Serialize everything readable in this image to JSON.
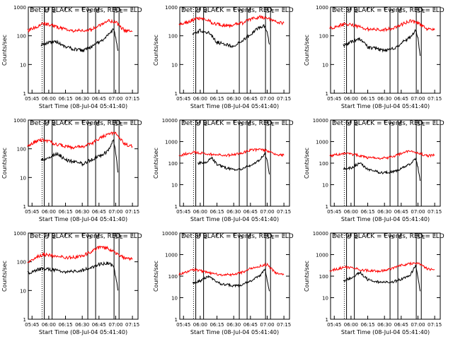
{
  "chart_data": [
    {
      "type": "line",
      "title": "Det 1f BLACK = Events, RED = LLD",
      "ylabel": "Counts/sec",
      "xlabel": "Start Time (08-Jul-04 05:41:40)",
      "x_ticks": [
        "05:45",
        "06:00",
        "06:15",
        "06:30",
        "06:45",
        "07:00",
        "07:15"
      ],
      "y_ticks": [
        "1",
        "10",
        "100",
        "1000"
      ],
      "ylim": [
        1,
        1000
      ],
      "yscale": "log",
      "markers": [
        "S",
        "E",
        "S",
        "E",
        "S",
        "E"
      ],
      "series": [
        {
          "color": "#000000",
          "x": [
            "05:53",
            "06:00",
            "06:08",
            "06:15",
            "06:23",
            "06:30",
            "06:38",
            "06:45",
            "06:53",
            "06:58",
            "07:00",
            "07:02"
          ],
          "values": [
            50,
            60,
            60,
            40,
            35,
            30,
            40,
            60,
            100,
            180,
            90,
            30
          ]
        },
        {
          "color": "#ff0000",
          "x": [
            "05:41",
            "05:48",
            "05:55",
            "06:00",
            "06:08",
            "06:15",
            "06:23",
            "06:30",
            "06:38",
            "06:45",
            "06:53",
            "07:00",
            "07:08",
            "07:15"
          ],
          "values": [
            150,
            200,
            260,
            250,
            200,
            170,
            150,
            150,
            160,
            220,
            330,
            300,
            150,
            140
          ]
        }
      ]
    },
    {
      "type": "line",
      "title": "Det 2f BLACK = Events, RED = LLD",
      "ylabel": "Counts/sec",
      "xlabel": "Start Time (08-Jul-04 05:41:40)",
      "x_ticks": [
        "05:45",
        "06:00",
        "06:15",
        "06:30",
        "06:45",
        "07:00",
        "07:15"
      ],
      "y_ticks": [
        "1",
        "10",
        "100",
        "1000"
      ],
      "ylim": [
        1,
        1000
      ],
      "yscale": "log",
      "markers": [
        "S",
        "E",
        "S",
        "E",
        "S",
        "E"
      ],
      "series": [
        {
          "color": "#000000",
          "x": [
            "05:53",
            "06:00",
            "06:08",
            "06:15",
            "06:23",
            "06:30",
            "06:38",
            "06:45",
            "06:53",
            "06:58",
            "07:00",
            "07:02"
          ],
          "values": [
            120,
            150,
            130,
            60,
            50,
            40,
            70,
            110,
            200,
            220,
            120,
            50
          ]
        },
        {
          "color": "#ff0000",
          "x": [
            "05:41",
            "05:48",
            "05:55",
            "06:00",
            "06:08",
            "06:15",
            "06:23",
            "06:30",
            "06:38",
            "06:45",
            "06:53",
            "07:00",
            "07:08",
            "07:15"
          ],
          "values": [
            250,
            300,
            380,
            400,
            320,
            250,
            220,
            240,
            280,
            380,
            450,
            400,
            300,
            280
          ]
        }
      ]
    },
    {
      "type": "line",
      "title": "Det 3f BLACK = Events, RED = LLD",
      "ylabel": "Counts/sec",
      "xlabel": "Start Time (08-Jul-04 05:41:40)",
      "x_ticks": [
        "05:45",
        "06:00",
        "06:15",
        "06:30",
        "06:45",
        "07:00",
        "07:15"
      ],
      "y_ticks": [
        "1",
        "10",
        "100",
        "1000"
      ],
      "ylim": [
        1,
        1000
      ],
      "yscale": "log",
      "markers": [
        "S",
        "E",
        "S",
        "E",
        "S",
        "E"
      ],
      "series": [
        {
          "color": "#000000",
          "x": [
            "05:53",
            "06:00",
            "06:08",
            "06:15",
            "06:23",
            "06:30",
            "06:38",
            "06:45",
            "06:53",
            "06:58",
            "07:00",
            "07:02"
          ],
          "values": [
            45,
            60,
            80,
            40,
            35,
            30,
            35,
            55,
            90,
            150,
            80,
            20
          ]
        },
        {
          "color": "#ff0000",
          "x": [
            "05:41",
            "05:48",
            "05:55",
            "06:00",
            "06:08",
            "06:15",
            "06:23",
            "06:30",
            "06:38",
            "06:45",
            "06:53",
            "07:00",
            "07:08",
            "07:15"
          ],
          "values": [
            180,
            220,
            260,
            250,
            200,
            170,
            160,
            160,
            180,
            240,
            330,
            280,
            170,
            160
          ]
        }
      ]
    },
    {
      "type": "line",
      "title": "Det 4f BLACK = Events, RED = LLD",
      "ylabel": "Counts/sec",
      "xlabel": "Start Time (08-Jul-04 05:41:40)",
      "x_ticks": [
        "05:45",
        "06:00",
        "06:15",
        "06:30",
        "06:45",
        "07:00",
        "07:15"
      ],
      "y_ticks": [
        "1",
        "10",
        "100",
        "1000"
      ],
      "ylim": [
        1,
        1000
      ],
      "yscale": "log",
      "markers": [
        "S",
        "E",
        "S",
        "E",
        "S",
        "E"
      ],
      "series": [
        {
          "color": "#000000",
          "x": [
            "05:53",
            "06:00",
            "06:08",
            "06:15",
            "06:23",
            "06:30",
            "06:38",
            "06:45",
            "06:53",
            "06:58",
            "07:00",
            "07:02"
          ],
          "values": [
            40,
            50,
            70,
            40,
            35,
            30,
            40,
            55,
            80,
            200,
            70,
            15
          ]
        },
        {
          "color": "#ff0000",
          "x": [
            "05:41",
            "05:48",
            "05:55",
            "06:00",
            "06:08",
            "06:15",
            "06:23",
            "06:30",
            "06:38",
            "06:45",
            "06:53",
            "07:00",
            "07:08",
            "07:15"
          ],
          "values": [
            130,
            180,
            200,
            180,
            140,
            120,
            110,
            120,
            150,
            220,
            320,
            350,
            150,
            120
          ]
        }
      ]
    },
    {
      "type": "line",
      "title": "Det 5f BLACK = Events, RED = LLD",
      "ylabel": "Counts/sec",
      "xlabel": "Start Time (08-Jul-04 05:41:40)",
      "x_ticks": [
        "05:45",
        "06:00",
        "06:15",
        "06:30",
        "06:45",
        "07:00",
        "07:15"
      ],
      "y_ticks": [
        "1",
        "10",
        "100",
        "1000",
        "10000"
      ],
      "ylim": [
        1,
        10000
      ],
      "yscale": "log",
      "markers": [
        "S",
        "E",
        "S",
        "E",
        "S",
        "E"
      ],
      "series": [
        {
          "color": "#000000",
          "x": [
            "05:58",
            "06:05",
            "06:10",
            "06:15",
            "06:23",
            "06:30",
            "06:38",
            "06:45",
            "06:53",
            "06:58",
            "07:00",
            "07:02"
          ],
          "values": [
            100,
            110,
            180,
            90,
            60,
            50,
            55,
            80,
            130,
            280,
            120,
            30
          ]
        },
        {
          "color": "#ff0000",
          "x": [
            "05:41",
            "05:48",
            "05:55",
            "06:00",
            "06:08",
            "06:15",
            "06:23",
            "06:30",
            "06:38",
            "06:45",
            "06:53",
            "07:00",
            "07:08",
            "07:15"
          ],
          "values": [
            220,
            280,
            320,
            300,
            260,
            240,
            230,
            240,
            300,
            400,
            430,
            380,
            240,
            230
          ]
        }
      ]
    },
    {
      "type": "line",
      "title": "Det 6f BLACK = Events, RED = LLD",
      "ylabel": "Counts/sec",
      "xlabel": "Start Time (08-Jul-04 05:41:40)",
      "x_ticks": [
        "05:45",
        "06:00",
        "06:15",
        "06:30",
        "06:45",
        "07:00",
        "07:15"
      ],
      "y_ticks": [
        "1",
        "10",
        "100",
        "1000",
        "10000"
      ],
      "ylim": [
        1,
        10000
      ],
      "yscale": "log",
      "markers": [
        "S",
        "E",
        "S",
        "E",
        "S",
        "E"
      ],
      "series": [
        {
          "color": "#000000",
          "x": [
            "05:53",
            "06:00",
            "06:08",
            "06:15",
            "06:23",
            "06:30",
            "06:38",
            "06:45",
            "06:53",
            "06:58",
            "07:00",
            "07:02"
          ],
          "values": [
            55,
            60,
            100,
            50,
            40,
            35,
            40,
            55,
            90,
            160,
            60,
            15
          ]
        },
        {
          "color": "#ff0000",
          "x": [
            "05:41",
            "05:48",
            "05:55",
            "06:00",
            "06:08",
            "06:15",
            "06:23",
            "06:30",
            "06:38",
            "06:45",
            "06:53",
            "07:00",
            "07:08",
            "07:15"
          ],
          "values": [
            220,
            250,
            280,
            260,
            220,
            180,
            170,
            170,
            200,
            280,
            370,
            300,
            220,
            230
          ]
        }
      ]
    },
    {
      "type": "line",
      "title": "Det 7f BLACK = Events, RED = LLD",
      "ylabel": "Counts/sec",
      "xlabel": "Start Time (08-Jul-04 05:41:40)",
      "x_ticks": [
        "05:45",
        "06:00",
        "06:15",
        "06:30",
        "06:45",
        "07:00",
        "07:15"
      ],
      "y_ticks": [
        "1",
        "10",
        "100",
        "1000"
      ],
      "ylim": [
        1,
        1000
      ],
      "yscale": "log",
      "markers": [
        "S",
        "E",
        "S",
        "E",
        "S",
        "E"
      ],
      "series": [
        {
          "color": "#000000",
          "x": [
            "05:41",
            "05:48",
            "05:55",
            "06:00",
            "06:08",
            "06:15",
            "06:23",
            "06:30",
            "06:38",
            "06:45",
            "06:53",
            "06:58",
            "07:00",
            "07:02"
          ],
          "values": [
            40,
            50,
            60,
            55,
            50,
            45,
            45,
            50,
            60,
            80,
            90,
            70,
            30,
            10
          ]
        },
        {
          "color": "#ff0000",
          "x": [
            "05:41",
            "05:48",
            "05:55",
            "06:00",
            "06:08",
            "06:15",
            "06:23",
            "06:30",
            "06:38",
            "06:45",
            "06:53",
            "07:00",
            "07:08",
            "07:15"
          ],
          "values": [
            100,
            140,
            180,
            170,
            150,
            140,
            140,
            160,
            220,
            320,
            300,
            200,
            130,
            120
          ]
        }
      ]
    },
    {
      "type": "line",
      "title": "Det 8f BLACK = Events, RED = LLD",
      "ylabel": "Counts/sec",
      "xlabel": "Start Time (08-Jul-04 05:41:40)",
      "x_ticks": [
        "05:45",
        "06:00",
        "06:15",
        "06:30",
        "06:45",
        "07:00",
        "07:15"
      ],
      "y_ticks": [
        "1",
        "10",
        "100",
        "1000",
        "10000"
      ],
      "ylim": [
        1,
        10000
      ],
      "yscale": "log",
      "markers": [
        "S",
        "E",
        "S",
        "E",
        "S",
        "E"
      ],
      "series": [
        {
          "color": "#000000",
          "x": [
            "05:53",
            "06:00",
            "06:08",
            "06:15",
            "06:23",
            "06:30",
            "06:38",
            "06:45",
            "06:53",
            "06:58",
            "07:00",
            "07:02"
          ],
          "values": [
            50,
            60,
            100,
            50,
            40,
            35,
            40,
            60,
            100,
            200,
            60,
            20
          ]
        },
        {
          "color": "#ff0000",
          "x": [
            "05:41",
            "05:48",
            "05:55",
            "06:00",
            "06:08",
            "06:15",
            "06:23",
            "06:30",
            "06:38",
            "06:45",
            "06:53",
            "07:00",
            "07:08",
            "07:15"
          ],
          "values": [
            120,
            160,
            200,
            180,
            140,
            120,
            115,
            120,
            150,
            220,
            290,
            350,
            130,
            120
          ]
        }
      ]
    },
    {
      "type": "line",
      "title": "Det 9f BLACK = Events, RED = LLD",
      "ylabel": "Counts/sec",
      "xlabel": "Start Time (08-Jul-04 05:41:40)",
      "x_ticks": [
        "05:45",
        "06:00",
        "06:15",
        "06:30",
        "06:45",
        "07:00",
        "07:15"
      ],
      "y_ticks": [
        "1",
        "10",
        "100",
        "1000",
        "10000"
      ],
      "ylim": [
        1,
        10000
      ],
      "yscale": "log",
      "markers": [
        "S",
        "E",
        "S",
        "E",
        "S",
        "E"
      ],
      "series": [
        {
          "color": "#000000",
          "x": [
            "05:53",
            "06:00",
            "06:08",
            "06:15",
            "06:23",
            "06:30",
            "06:38",
            "06:45",
            "06:53",
            "06:58",
            "07:00",
            "07:02"
          ],
          "values": [
            60,
            80,
            150,
            70,
            55,
            50,
            55,
            70,
            110,
            300,
            80,
            20
          ]
        },
        {
          "color": "#ff0000",
          "x": [
            "05:41",
            "05:48",
            "05:55",
            "06:00",
            "06:08",
            "06:15",
            "06:23",
            "06:30",
            "06:38",
            "06:45",
            "06:53",
            "07:00",
            "07:08",
            "07:15"
          ],
          "values": [
            180,
            220,
            260,
            240,
            200,
            180,
            170,
            180,
            230,
            320,
            380,
            400,
            220,
            200
          ]
        }
      ]
    }
  ]
}
